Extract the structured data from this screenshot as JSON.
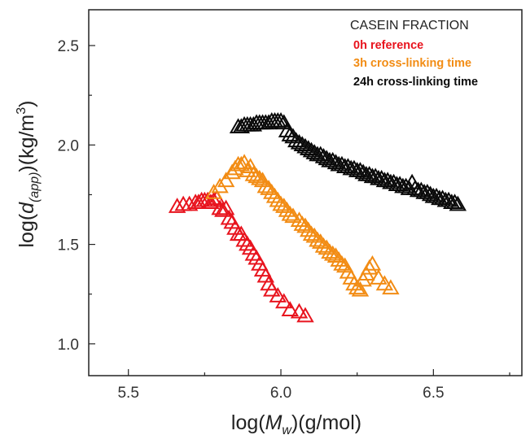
{
  "chart_data": {
    "type": "scatter",
    "title": "",
    "xlabel": "log(M_w)(g/mol)",
    "ylabel": "log(d_(app))(kg/m^3)",
    "xlim": [
      5.37,
      6.79
    ],
    "ylim": [
      0.84,
      2.68
    ],
    "xticks": [
      5.5,
      6.0,
      6.5
    ],
    "xtick_labels": [
      "5.5",
      "6.0",
      "6.5"
    ],
    "yticks": [
      1.0,
      1.5,
      2.0,
      2.5
    ],
    "ytick_labels": [
      "1.0",
      "1.5",
      "2.0",
      "2.5"
    ],
    "grid": false,
    "marker": "open-triangle",
    "legend": {
      "title": "CASEIN FRACTION",
      "position": "top-right",
      "entries": [
        "0h reference",
        "3h cross-linking time",
        "24h cross-linking time"
      ]
    },
    "series": [
      {
        "name": "0h reference",
        "color": "#e8141e",
        "x": [
          5.66,
          5.68,
          5.7,
          5.72,
          5.73,
          5.74,
          5.75,
          5.76,
          5.77,
          5.78,
          5.79,
          5.8,
          5.81,
          5.82,
          5.83,
          5.84,
          5.85,
          5.86,
          5.87,
          5.88,
          5.89,
          5.9,
          5.91,
          5.92,
          5.93,
          5.94,
          5.95,
          5.96,
          5.97,
          5.99,
          6.01,
          6.03,
          6.06,
          6.08
        ],
        "y": [
          1.69,
          1.7,
          1.7,
          1.71,
          1.71,
          1.72,
          1.72,
          1.72,
          1.71,
          1.72,
          1.73,
          1.68,
          1.67,
          1.68,
          1.63,
          1.61,
          1.58,
          1.55,
          1.55,
          1.52,
          1.5,
          1.48,
          1.45,
          1.43,
          1.4,
          1.37,
          1.34,
          1.3,
          1.27,
          1.24,
          1.21,
          1.17,
          1.16,
          1.14
        ]
      },
      {
        "name": "3h cross-linking time",
        "color": "#f28c14",
        "x": [
          5.78,
          5.8,
          5.82,
          5.84,
          5.85,
          5.86,
          5.87,
          5.88,
          5.89,
          5.9,
          5.91,
          5.92,
          5.93,
          5.94,
          5.95,
          5.96,
          5.97,
          5.98,
          5.99,
          6.0,
          6.01,
          6.02,
          6.03,
          6.04,
          6.06,
          6.07,
          6.08,
          6.09,
          6.1,
          6.11,
          6.12,
          6.13,
          6.14,
          6.15,
          6.16,
          6.17,
          6.18,
          6.19,
          6.2,
          6.21,
          6.22,
          6.23,
          6.24,
          6.25,
          6.26,
          6.27,
          6.28,
          6.29,
          6.3,
          6.32,
          6.34,
          6.36
        ],
        "y": [
          1.76,
          1.79,
          1.82,
          1.86,
          1.88,
          1.9,
          1.9,
          1.91,
          1.87,
          1.89,
          1.85,
          1.84,
          1.83,
          1.82,
          1.79,
          1.78,
          1.76,
          1.74,
          1.72,
          1.7,
          1.69,
          1.67,
          1.65,
          1.64,
          1.62,
          1.6,
          1.59,
          1.57,
          1.55,
          1.54,
          1.52,
          1.51,
          1.49,
          1.48,
          1.46,
          1.45,
          1.44,
          1.42,
          1.4,
          1.39,
          1.36,
          1.33,
          1.3,
          1.28,
          1.27,
          1.32,
          1.35,
          1.38,
          1.4,
          1.33,
          1.3,
          1.28
        ]
      },
      {
        "name": "24h cross-linking time",
        "color": "#0a0a0a",
        "x": [
          5.86,
          5.87,
          5.88,
          5.89,
          5.9,
          5.91,
          5.92,
          5.93,
          5.94,
          5.95,
          5.96,
          5.97,
          5.98,
          5.99,
          6.0,
          6.01,
          6.02,
          6.03,
          6.04,
          6.05,
          6.06,
          6.07,
          6.08,
          6.09,
          6.1,
          6.11,
          6.12,
          6.13,
          6.14,
          6.15,
          6.16,
          6.17,
          6.18,
          6.19,
          6.2,
          6.21,
          6.22,
          6.23,
          6.24,
          6.25,
          6.26,
          6.27,
          6.28,
          6.29,
          6.3,
          6.31,
          6.32,
          6.33,
          6.34,
          6.35,
          6.36,
          6.37,
          6.38,
          6.39,
          6.4,
          6.41,
          6.42,
          6.43,
          6.44,
          6.45,
          6.46,
          6.47,
          6.48,
          6.49,
          6.5,
          6.51,
          6.52,
          6.53,
          6.54,
          6.55,
          6.56,
          6.57,
          6.58
        ],
        "y": [
          2.09,
          2.09,
          2.1,
          2.1,
          2.1,
          2.1,
          2.11,
          2.11,
          2.11,
          2.11,
          2.11,
          2.12,
          2.12,
          2.12,
          2.12,
          2.11,
          2.07,
          2.05,
          2.04,
          2.02,
          2.01,
          2.0,
          1.99,
          1.98,
          1.97,
          1.96,
          1.95,
          1.95,
          1.94,
          1.93,
          1.92,
          1.92,
          1.91,
          1.9,
          1.9,
          1.89,
          1.89,
          1.88,
          1.88,
          1.87,
          1.87,
          1.86,
          1.85,
          1.85,
          1.84,
          1.84,
          1.83,
          1.83,
          1.82,
          1.82,
          1.81,
          1.81,
          1.8,
          1.8,
          1.79,
          1.79,
          1.78,
          1.81,
          1.78,
          1.77,
          1.77,
          1.76,
          1.76,
          1.75,
          1.74,
          1.74,
          1.73,
          1.73,
          1.72,
          1.72,
          1.71,
          1.71,
          1.7
        ]
      }
    ]
  }
}
